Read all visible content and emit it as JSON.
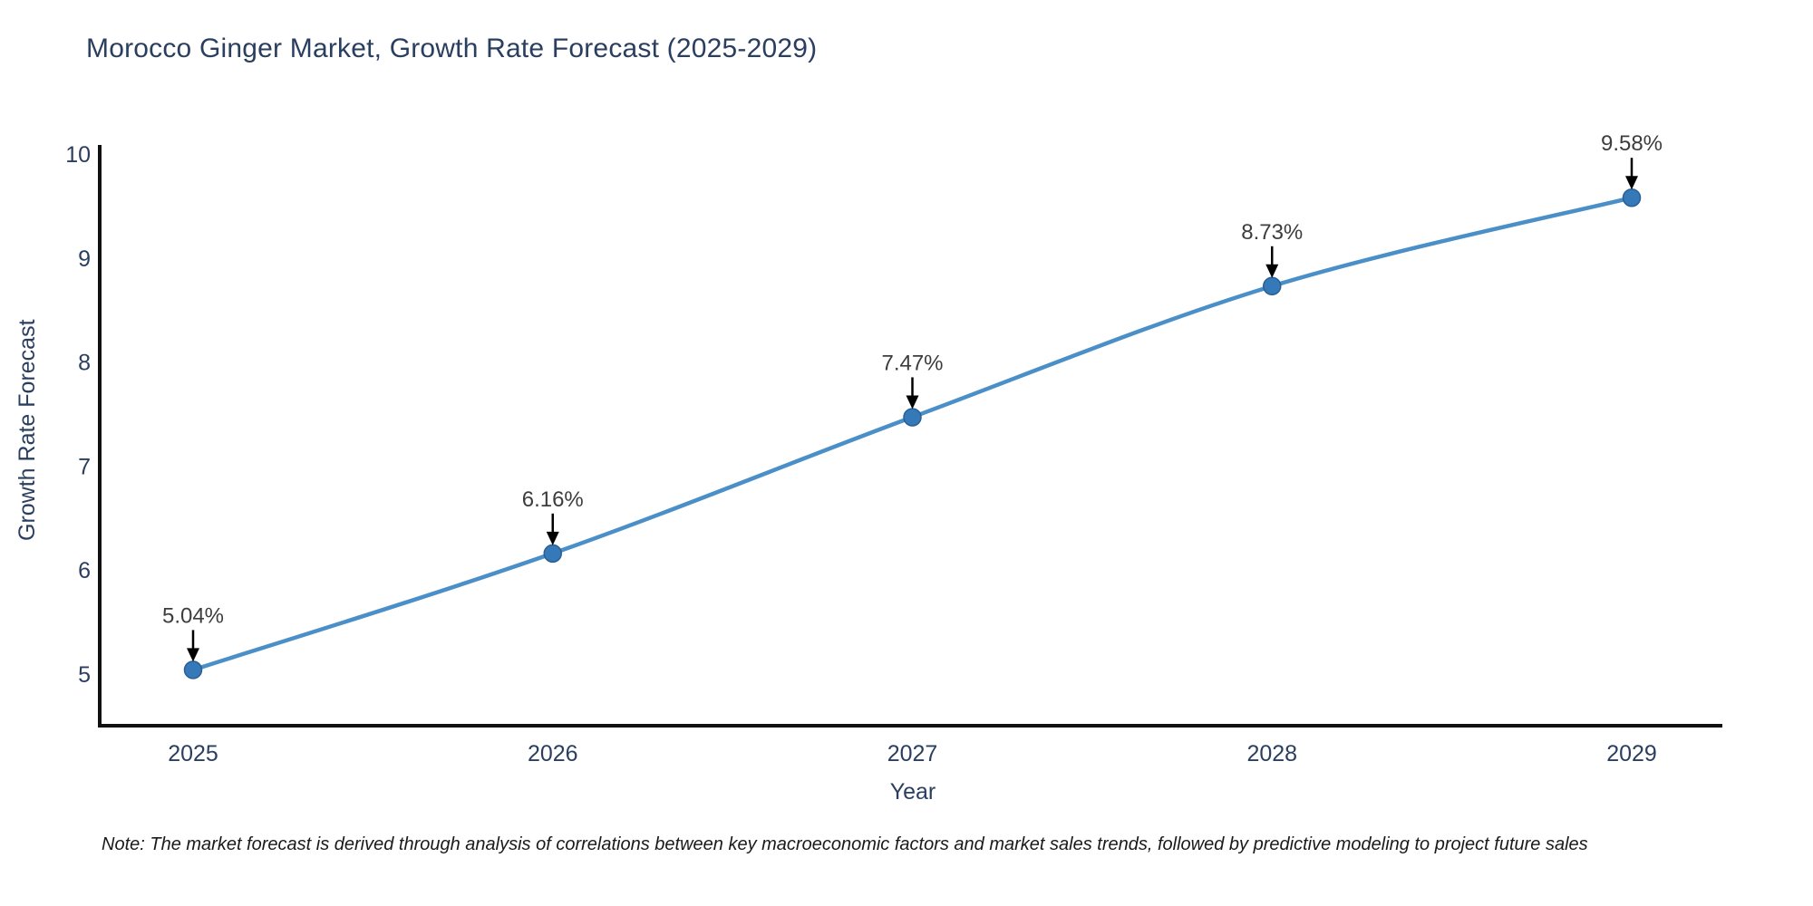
{
  "title": "Morocco Ginger Market, Growth Rate Forecast (2025-2029)",
  "note": "Note: The market forecast is derived through analysis of correlations between key macroeconomic factors and market sales trends, followed by predictive modeling to project future sales",
  "chart_data": {
    "type": "line",
    "title": "Morocco Ginger Market, Growth Rate Forecast (2025-2029)",
    "xlabel": "Year",
    "ylabel": "Growth Rate Forecast",
    "categories": [
      "2025",
      "2026",
      "2027",
      "2028",
      "2029"
    ],
    "values": [
      5.04,
      6.16,
      7.47,
      8.73,
      9.58
    ],
    "point_labels": [
      "5.04%",
      "6.16%",
      "7.47%",
      "8.73%",
      "9.58%"
    ],
    "yticks": [
      5,
      6,
      7,
      8,
      9,
      10
    ],
    "ylim": [
      4.5,
      10
    ],
    "grid": false,
    "legend": "none",
    "annotations_have_arrows": true,
    "colors": {
      "line": "#4a8fc7",
      "marker_fill": "#3579b8",
      "marker_edge": "#2a5f95",
      "axis": "#111111",
      "tick_text": "#2a3f5f",
      "annotation_text": "#3d3d3d",
      "arrow": "#000000",
      "title_text": "#2a3f5f"
    }
  }
}
